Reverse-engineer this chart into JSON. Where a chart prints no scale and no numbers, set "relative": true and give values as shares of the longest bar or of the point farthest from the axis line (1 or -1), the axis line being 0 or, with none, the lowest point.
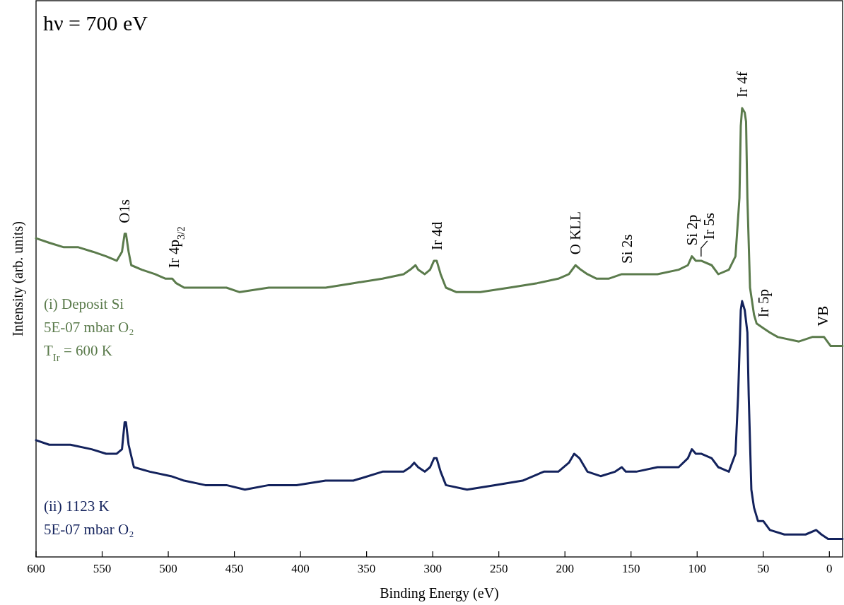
{
  "chart_data": {
    "type": "line",
    "relative": true,
    "title": "hν = 700 eV",
    "xlabel": "Binding Energy (eV)",
    "ylabel": "Intensity (arb. units)",
    "xlim": [
      600,
      -10
    ],
    "xticks": [
      600,
      550,
      500,
      450,
      400,
      350,
      300,
      250,
      200,
      150,
      100,
      50,
      0
    ],
    "grid": false,
    "legend": false,
    "line_style": "solid",
    "marker": "none",
    "tick_labels": "x",
    "series": [
      {
        "name": "(i) Deposit Si\n5E-07 mbar O₂\nT$_{Ir}$ = 600 K",
        "color": "#5b7b4c",
        "x": [
          600,
          590,
          579,
          568,
          557,
          547,
          539,
          535,
          533,
          532,
          530,
          528,
          520,
          510,
          502,
          497,
          494,
          488,
          478,
          467,
          456,
          446,
          424,
          403,
          381,
          360,
          338,
          322,
          317,
          313,
          311,
          306,
          302,
          299,
          297,
          294,
          290,
          282,
          264,
          242,
          221,
          205,
          197,
          192,
          188,
          183,
          176,
          167,
          157,
          146,
          130,
          114,
          107,
          104,
          101,
          97,
          89,
          84,
          76,
          71,
          68,
          67,
          66,
          64,
          63,
          62,
          60,
          57,
          55,
          50,
          45,
          39,
          23,
          13,
          8,
          4,
          -1,
          -10
        ],
        "values": [
          0.71,
          0.7,
          0.69,
          0.69,
          0.68,
          0.67,
          0.66,
          0.68,
          0.72,
          0.72,
          0.68,
          0.65,
          0.64,
          0.63,
          0.62,
          0.62,
          0.61,
          0.6,
          0.6,
          0.6,
          0.6,
          0.59,
          0.6,
          0.6,
          0.6,
          0.61,
          0.62,
          0.63,
          0.64,
          0.65,
          0.64,
          0.63,
          0.64,
          0.66,
          0.66,
          0.63,
          0.6,
          0.59,
          0.59,
          0.6,
          0.61,
          0.62,
          0.63,
          0.65,
          0.64,
          0.63,
          0.62,
          0.62,
          0.63,
          0.63,
          0.63,
          0.64,
          0.65,
          0.67,
          0.66,
          0.66,
          0.65,
          0.63,
          0.64,
          0.67,
          0.8,
          0.96,
          1,
          0.99,
          0.97,
          0.8,
          0.6,
          0.54,
          0.52,
          0.51,
          0.5,
          0.49,
          0.48,
          0.49,
          0.49,
          0.49,
          0.47,
          0.47
        ]
      },
      {
        "name": "(ii) 1123 K\n5E-07 mbar O₂",
        "color": "#13225c",
        "x": [
          600,
          590,
          574,
          558,
          547,
          539,
          535,
          533,
          532,
          530,
          526,
          514,
          498,
          488,
          472,
          456,
          442,
          424,
          403,
          381,
          360,
          338,
          322,
          317,
          314,
          311,
          306,
          302,
          299,
          297,
          294,
          290,
          274,
          253,
          232,
          216,
          205,
          197,
          193,
          189,
          183,
          173,
          162,
          157,
          154,
          146,
          130,
          114,
          107,
          104,
          101,
          97,
          89,
          84,
          76,
          71,
          69,
          67,
          66,
          64,
          62,
          61,
          59,
          57,
          54,
          50,
          45,
          34,
          18,
          10,
          6,
          1,
          -10
        ],
        "values": [
          0.26,
          0.25,
          0.25,
          0.24,
          0.23,
          0.23,
          0.24,
          0.3,
          0.3,
          0.25,
          0.2,
          0.19,
          0.18,
          0.17,
          0.16,
          0.16,
          0.15,
          0.16,
          0.16,
          0.17,
          0.17,
          0.19,
          0.19,
          0.2,
          0.21,
          0.2,
          0.19,
          0.2,
          0.22,
          0.22,
          0.19,
          0.16,
          0.15,
          0.16,
          0.17,
          0.19,
          0.19,
          0.21,
          0.23,
          0.22,
          0.19,
          0.18,
          0.19,
          0.2,
          0.19,
          0.19,
          0.2,
          0.2,
          0.22,
          0.24,
          0.23,
          0.23,
          0.22,
          0.2,
          0.19,
          0.23,
          0.36,
          0.55,
          0.57,
          0.55,
          0.5,
          0.36,
          0.15,
          0.11,
          0.08,
          0.08,
          0.06,
          0.05,
          0.05,
          0.06,
          0.05,
          0.04,
          0.04
        ]
      }
    ],
    "annotations": [
      {
        "text": "O1s",
        "x": 533,
        "y": 0.72
      },
      {
        "text": "Ir 4p$_{3/2}$",
        "x": 496,
        "y": 0.62
      },
      {
        "text": "Ir 4d",
        "x": 297,
        "y": 0.66
      },
      {
        "text": "O KLL",
        "x": 192,
        "y": 0.65
      },
      {
        "text": "Si 2s",
        "x": 153,
        "y": 0.63
      },
      {
        "text": "Si 2p",
        "x": 104,
        "y": 0.67
      },
      {
        "text": "Ir 5s",
        "x": 97,
        "y": 0.66
      },
      {
        "text": "Ir 4f",
        "x": 66,
        "y": 1
      },
      {
        "text": "Ir 5p",
        "x": 50,
        "y": 0.51
      },
      {
        "text": "VB",
        "x": 5,
        "y": 0.49
      }
    ]
  }
}
